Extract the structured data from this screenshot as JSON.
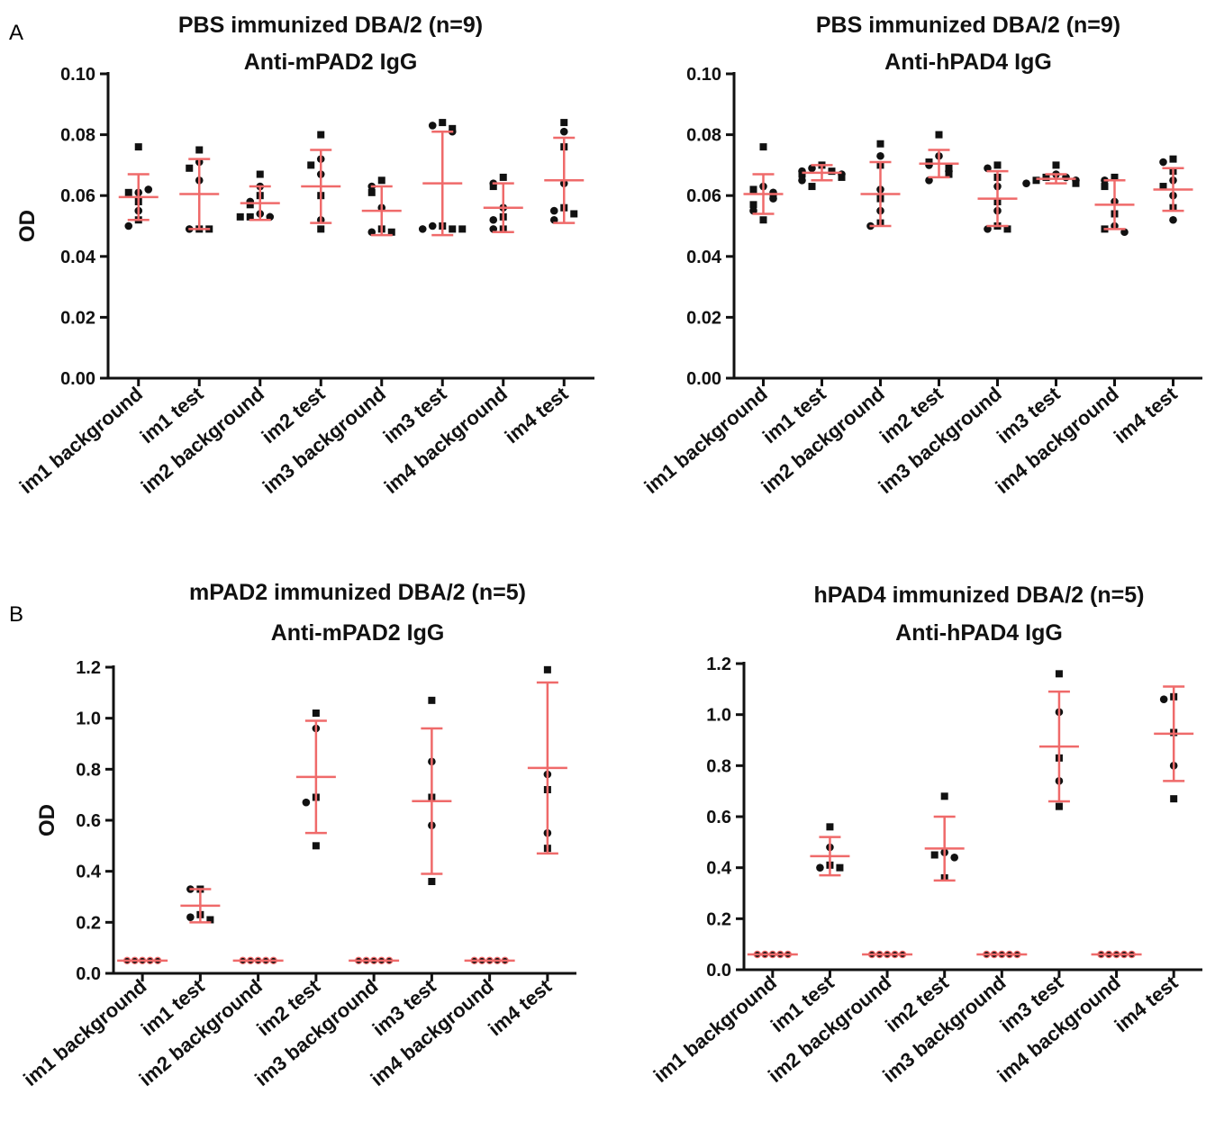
{
  "panel_labels": [
    "A",
    "B"
  ],
  "chart_data": [
    {
      "type": "scatter",
      "title": "PBS immunized DBA/2 (n=9)",
      "subtitle": "Anti-mPAD2 IgG",
      "ylabel": "OD",
      "ylim": [
        0,
        0.1
      ],
      "yticks": [
        "0.00",
        "0.02",
        "0.04",
        "0.06",
        "0.08",
        "0.10"
      ],
      "categories": [
        "im1 background",
        "im1 test",
        "im2 background",
        "im2 test",
        "im3 background",
        "im3 test",
        "im4 background",
        "im4 test"
      ],
      "groups": [
        {
          "points": [
            0.076,
            0.061,
            0.061,
            0.062,
            0.058,
            0.055,
            0.052,
            0.05
          ],
          "mean": 0.0595,
          "sd_low": 0.052,
          "sd_high": 0.067
        },
        {
          "points": [
            0.075,
            0.071,
            0.069,
            0.065,
            0.049,
            0.049,
            0.049
          ],
          "mean": 0.0605,
          "sd_low": 0.049,
          "sd_high": 0.072
        },
        {
          "points": [
            0.067,
            0.063,
            0.06,
            0.058,
            0.057,
            0.054,
            0.053,
            0.053,
            0.053
          ],
          "mean": 0.0575,
          "sd_low": 0.052,
          "sd_high": 0.063
        },
        {
          "points": [
            0.08,
            0.072,
            0.07,
            0.067,
            0.06,
            0.052,
            0.049
          ],
          "mean": 0.063,
          "sd_low": 0.051,
          "sd_high": 0.075
        },
        {
          "points": [
            0.065,
            0.063,
            0.061,
            0.056,
            0.049,
            0.048,
            0.048
          ],
          "mean": 0.055,
          "sd_low": 0.047,
          "sd_high": 0.063
        },
        {
          "points": [
            0.084,
            0.083,
            0.082,
            0.081,
            0.05,
            0.05,
            0.049,
            0.049,
            0.049
          ],
          "mean": 0.064,
          "sd_low": 0.047,
          "sd_high": 0.081
        },
        {
          "points": [
            0.066,
            0.064,
            0.063,
            0.056,
            0.053,
            0.052,
            0.049,
            0.049
          ],
          "mean": 0.056,
          "sd_low": 0.048,
          "sd_high": 0.064
        },
        {
          "points": [
            0.084,
            0.081,
            0.076,
            0.064,
            0.056,
            0.055,
            0.054,
            0.052
          ],
          "mean": 0.065,
          "sd_low": 0.051,
          "sd_high": 0.079
        }
      ]
    },
    {
      "type": "scatter",
      "title": "PBS immunized DBA/2 (n=9)",
      "subtitle": "Anti-hPAD4 IgG",
      "ylabel": "",
      "ylim": [
        0,
        0.1
      ],
      "yticks": [
        "0.00",
        "0.02",
        "0.04",
        "0.06",
        "0.08",
        "0.10"
      ],
      "categories": [
        "im1 background",
        "im1 test",
        "im2 background",
        "im2 test",
        "im3 background",
        "im3 test",
        "im4 background",
        "im4 test"
      ],
      "groups": [
        {
          "points": [
            0.076,
            0.063,
            0.062,
            0.061,
            0.06,
            0.059,
            0.057,
            0.055,
            0.052
          ],
          "mean": 0.0605,
          "sd_low": 0.054,
          "sd_high": 0.067
        },
        {
          "points": [
            0.07,
            0.069,
            0.068,
            0.068,
            0.067,
            0.067,
            0.066,
            0.065,
            0.063
          ],
          "mean": 0.0675,
          "sd_low": 0.065,
          "sd_high": 0.07
        },
        {
          "points": [
            0.077,
            0.073,
            0.07,
            0.062,
            0.059,
            0.055,
            0.051,
            0.05
          ],
          "mean": 0.0605,
          "sd_low": 0.05,
          "sd_high": 0.071
        },
        {
          "points": [
            0.08,
            0.073,
            0.071,
            0.07,
            0.069,
            0.068,
            0.067,
            0.065
          ],
          "mean": 0.0705,
          "sd_low": 0.066,
          "sd_high": 0.075
        },
        {
          "points": [
            0.07,
            0.069,
            0.066,
            0.063,
            0.058,
            0.055,
            0.05,
            0.049,
            0.049
          ],
          "mean": 0.059,
          "sd_low": 0.05,
          "sd_high": 0.068
        },
        {
          "points": [
            0.07,
            0.067,
            0.066,
            0.066,
            0.065,
            0.065,
            0.064,
            0.064
          ],
          "mean": 0.0655,
          "sd_low": 0.064,
          "sd_high": 0.067
        },
        {
          "points": [
            0.066,
            0.065,
            0.063,
            0.058,
            0.054,
            0.05,
            0.049,
            0.048
          ],
          "mean": 0.057,
          "sd_low": 0.049,
          "sd_high": 0.065
        },
        {
          "points": [
            0.072,
            0.071,
            0.068,
            0.065,
            0.063,
            0.06,
            0.056,
            0.052
          ],
          "mean": 0.062,
          "sd_low": 0.055,
          "sd_high": 0.069
        }
      ]
    },
    {
      "type": "scatter",
      "title": "mPAD2 immunized DBA/2 (n=5)",
      "subtitle": "Anti-mPAD2 IgG",
      "ylabel": "OD",
      "ylim": [
        0,
        1.2
      ],
      "yticks": [
        "0.0",
        "0.2",
        "0.4",
        "0.6",
        "0.8",
        "1.0",
        "1.2"
      ],
      "categories": [
        "im1 background",
        "im1 test",
        "im2 background",
        "im2 test",
        "im3 background",
        "im3 test",
        "im4 background",
        "im4 test"
      ],
      "groups": [
        {
          "points": [
            0.05,
            0.05,
            0.05,
            0.05,
            0.05
          ],
          "mean": 0.05,
          "sd_low": 0.05,
          "sd_high": 0.05,
          "red_dots": true
        },
        {
          "points": [
            0.33,
            0.33,
            0.23,
            0.22,
            0.21
          ],
          "mean": 0.265,
          "sd_low": 0.2,
          "sd_high": 0.33
        },
        {
          "points": [
            0.05,
            0.05,
            0.05,
            0.05,
            0.05
          ],
          "mean": 0.05,
          "sd_low": 0.05,
          "sd_high": 0.05,
          "red_dots": true
        },
        {
          "points": [
            1.02,
            0.96,
            0.69,
            0.67,
            0.5
          ],
          "mean": 0.77,
          "sd_low": 0.55,
          "sd_high": 0.99
        },
        {
          "points": [
            0.05,
            0.05,
            0.05,
            0.05,
            0.05
          ],
          "mean": 0.05,
          "sd_low": 0.05,
          "sd_high": 0.05,
          "red_dots": true
        },
        {
          "points": [
            1.07,
            0.83,
            0.69,
            0.58,
            0.36
          ],
          "mean": 0.675,
          "sd_low": 0.39,
          "sd_high": 0.96
        },
        {
          "points": [
            0.05,
            0.05,
            0.05,
            0.05,
            0.05
          ],
          "mean": 0.05,
          "sd_low": 0.05,
          "sd_high": 0.05,
          "red_dots": true
        },
        {
          "points": [
            1.19,
            0.78,
            0.72,
            0.55,
            0.49
          ],
          "mean": 0.805,
          "sd_low": 0.47,
          "sd_high": 1.14
        }
      ]
    },
    {
      "type": "scatter",
      "title": "hPAD4 immunized DBA/2 (n=5)",
      "subtitle": "Anti-hPAD4 IgG",
      "ylabel": "",
      "ylim": [
        0,
        1.2
      ],
      "yticks": [
        "0.0",
        "0.2",
        "0.4",
        "0.6",
        "0.8",
        "1.0",
        "1.2"
      ],
      "categories": [
        "im1 background",
        "im1 test",
        "im2 background",
        "im2 test",
        "im3 background",
        "im3 test",
        "im4 background",
        "im4 test"
      ],
      "groups": [
        {
          "points": [
            0.06,
            0.06,
            0.06,
            0.06,
            0.06
          ],
          "mean": 0.06,
          "sd_low": 0.06,
          "sd_high": 0.06,
          "red_dots": true
        },
        {
          "points": [
            0.56,
            0.48,
            0.41,
            0.4,
            0.4
          ],
          "mean": 0.445,
          "sd_low": 0.37,
          "sd_high": 0.52
        },
        {
          "points": [
            0.06,
            0.06,
            0.06,
            0.06,
            0.06
          ],
          "mean": 0.06,
          "sd_low": 0.06,
          "sd_high": 0.06,
          "red_dots": true
        },
        {
          "points": [
            0.68,
            0.46,
            0.45,
            0.44,
            0.36
          ],
          "mean": 0.475,
          "sd_low": 0.35,
          "sd_high": 0.6
        },
        {
          "points": [
            0.06,
            0.06,
            0.06,
            0.06,
            0.06
          ],
          "mean": 0.06,
          "sd_low": 0.06,
          "sd_high": 0.06,
          "red_dots": true
        },
        {
          "points": [
            1.16,
            1.01,
            0.83,
            0.74,
            0.64
          ],
          "mean": 0.875,
          "sd_low": 0.66,
          "sd_high": 1.09
        },
        {
          "points": [
            0.06,
            0.06,
            0.06,
            0.06,
            0.06
          ],
          "mean": 0.06,
          "sd_low": 0.06,
          "sd_high": 0.06,
          "red_dots": true
        },
        {
          "points": [
            1.07,
            1.06,
            0.93,
            0.8,
            0.67
          ],
          "mean": 0.925,
          "sd_low": 0.74,
          "sd_high": 1.11
        }
      ]
    }
  ]
}
